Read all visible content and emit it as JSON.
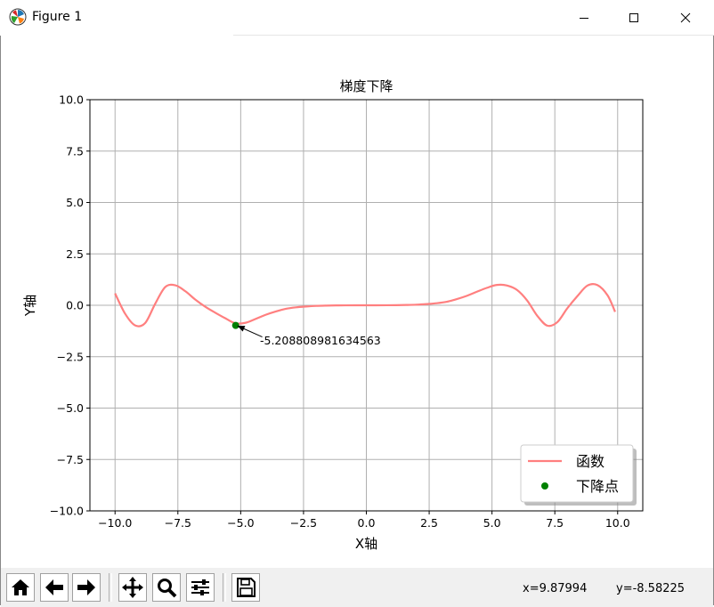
{
  "window": {
    "title": "Figure 1",
    "controls": {
      "minimize": "minimize",
      "maximize": "maximize",
      "close": "close"
    }
  },
  "chart_data": {
    "type": "line",
    "title": "梯度下降",
    "xlabel": "X轴",
    "ylabel": "Y轴",
    "xlim": [
      -11,
      11
    ],
    "ylim": [
      -10,
      10
    ],
    "grid": true,
    "xticks": [
      -10.0,
      -7.5,
      -5.0,
      -2.5,
      0.0,
      2.5,
      5.0,
      7.5,
      10.0
    ],
    "xtick_labels": [
      "−10.0",
      "−7.5",
      "−5.0",
      "−2.5",
      "0.0",
      "2.5",
      "5.0",
      "7.5",
      "10.0"
    ],
    "yticks": [
      10.0,
      7.5,
      5.0,
      2.5,
      0.0,
      -2.5,
      -5.0,
      -7.5,
      -10.0
    ],
    "ytick_labels": [
      "10.0",
      "7.5",
      "5.0",
      "2.5",
      "0.0",
      "−2.5",
      "−5.0",
      "−7.5",
      "−10.0"
    ],
    "series": [
      {
        "name": "函数",
        "kind": "line",
        "color": "#ff7f7f",
        "x": [
          -10.0,
          -9.6,
          -9.2,
          -8.8,
          -8.4,
          -8.0,
          -7.6,
          -7.2,
          -6.8,
          -6.4,
          -6.0,
          -5.6,
          -5.2,
          -4.8,
          -4.4,
          -4.0,
          -3.6,
          -3.2,
          -2.8,
          -2.4,
          -2.0,
          -1.6,
          -1.2,
          -0.8,
          -0.4,
          0.0,
          0.4,
          0.8,
          1.2,
          1.6,
          2.0,
          2.4,
          2.8,
          3.2,
          3.6,
          4.0,
          4.4,
          4.8,
          5.2,
          5.6,
          6.0,
          6.4,
          6.8,
          7.2,
          7.6,
          8.0,
          8.4,
          8.8,
          9.2,
          9.6,
          9.9
        ],
        "y": [
          0.58,
          -0.41,
          -0.98,
          -0.86,
          0.08,
          0.89,
          0.97,
          0.68,
          0.27,
          -0.08,
          -0.37,
          -0.64,
          -0.88,
          -0.85,
          -0.66,
          -0.46,
          -0.3,
          -0.17,
          -0.1,
          -0.06,
          -0.03,
          -0.015,
          -0.006,
          -0.002,
          -0.0001,
          0.0,
          0.0001,
          0.002,
          0.006,
          0.015,
          0.03,
          0.06,
          0.1,
          0.17,
          0.3,
          0.46,
          0.66,
          0.85,
          0.99,
          0.96,
          0.74,
          0.23,
          -0.51,
          -0.99,
          -0.82,
          -0.14,
          0.45,
          0.96,
          0.98,
          0.48,
          -0.32
        ]
      },
      {
        "name": "下降点",
        "kind": "scatter",
        "color": "#008000",
        "x": [
          -5.2
        ],
        "y": [
          -0.98
        ]
      }
    ],
    "annotations": [
      {
        "text": "-5.208808981634563",
        "xy": [
          -5.2,
          -0.98
        ],
        "xytext": [
          -4.0,
          -1.8
        ]
      }
    ],
    "legend": {
      "placement": "lower-right",
      "entries": [
        "函数",
        "下降点"
      ]
    }
  },
  "toolbar": {
    "buttons": [
      "home",
      "back",
      "forward",
      "pan",
      "zoom",
      "configure-subplots",
      "save"
    ],
    "coords_x": "x=9.87994",
    "coords_y": "y=-8.58225"
  }
}
